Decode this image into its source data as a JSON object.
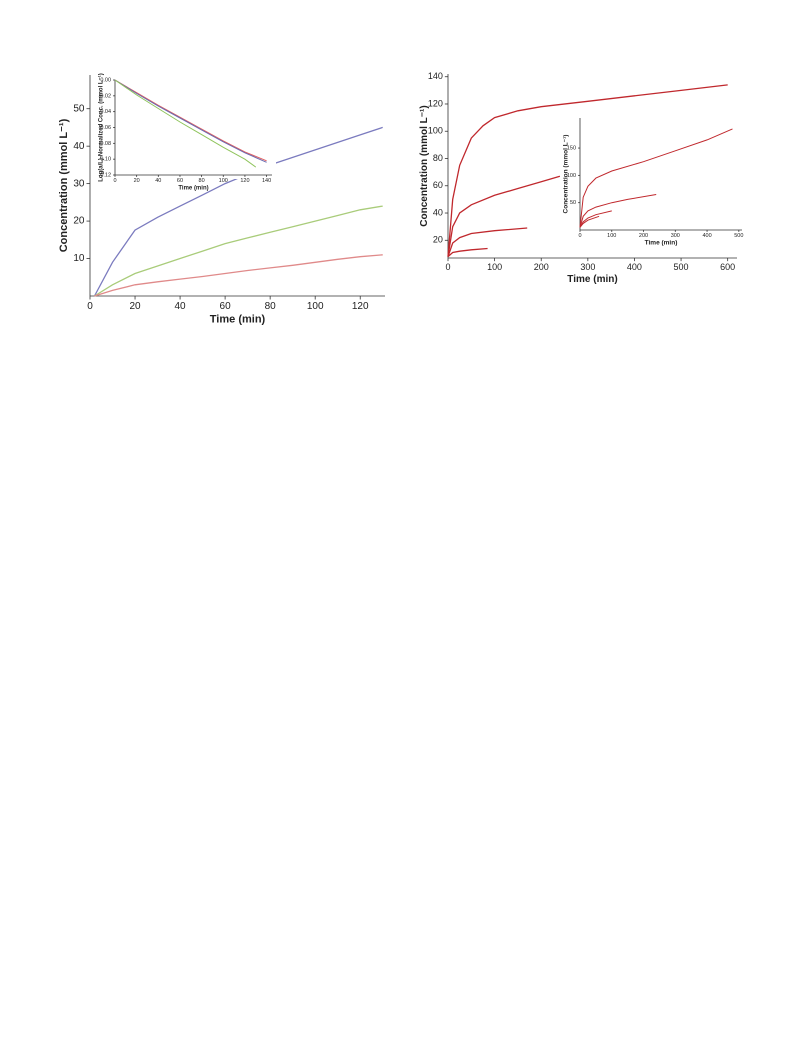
{
  "chart_data": [
    {
      "type": "line",
      "x_label": "Time (min)",
      "y_label": "Concentration (mmol L⁻¹)",
      "xlim": [
        0,
        131
      ],
      "ylim": [
        0,
        59
      ],
      "xticks": [
        0,
        20,
        40,
        60,
        80,
        100,
        120
      ],
      "yticks": [
        10,
        20,
        30,
        40,
        50
      ],
      "series": [
        {
          "color": "#7b7bbf",
          "x": [
            2,
            10,
            20,
            30,
            40,
            50,
            60,
            70,
            80,
            90,
            100,
            110,
            120,
            130
          ],
          "values": [
            0,
            9,
            17.6,
            21,
            24,
            27,
            30,
            32.5,
            35,
            37,
            39,
            41,
            43,
            45
          ]
        },
        {
          "color": "#a9cc7a",
          "x": [
            2,
            10,
            20,
            30,
            40,
            50,
            60,
            70,
            80,
            90,
            100,
            110,
            120,
            130
          ],
          "values": [
            0,
            3,
            6,
            8,
            10,
            12,
            14,
            15.5,
            17,
            18.5,
            20,
            21.5,
            23,
            24
          ]
        },
        {
          "color": "#e08a8a",
          "x": [
            2,
            10,
            20,
            30,
            40,
            50,
            60,
            70,
            80,
            90,
            100,
            110,
            120,
            130
          ],
          "values": [
            0,
            1.5,
            3,
            3.8,
            4.5,
            5.2,
            6,
            6.8,
            7.5,
            8.2,
            9,
            9.8,
            10.5,
            11
          ]
        }
      ]
    },
    {
      "type": "line",
      "x_label": "Time (min)",
      "y_label": "Log(a/L)-Normalized Conc. (mmol L⁻¹)",
      "xlim": [
        0,
        145
      ],
      "ylim": [
        -0.12,
        0
      ],
      "xticks": [
        0,
        20,
        40,
        60,
        80,
        100,
        120,
        140
      ],
      "yticks": [
        {
          "value": 0,
          "label": "0.00"
        },
        {
          "value": -0.02,
          "label": "-0.02"
        },
        {
          "value": -0.04,
          "label": "-0.04"
        },
        {
          "value": -0.06,
          "label": "-0.06"
        },
        {
          "value": -0.08,
          "label": "-0.08"
        },
        {
          "value": -0.1,
          "label": "-0.10"
        },
        {
          "value": -0.12,
          "label": "-0.12"
        }
      ],
      "series": [
        {
          "color": "#e06060",
          "x": [
            0,
            20,
            40,
            60,
            80,
            100,
            120,
            140
          ],
          "values": [
            0,
            -0.016,
            -0.032,
            -0.047,
            -0.062,
            -0.077,
            -0.091,
            -0.102
          ]
        },
        {
          "color": "#6a6ab0",
          "x": [
            0,
            20,
            40,
            60,
            80,
            100,
            120,
            140
          ],
          "values": [
            0,
            -0.017,
            -0.033,
            -0.048,
            -0.063,
            -0.078,
            -0.092,
            -0.104
          ]
        },
        {
          "color": "#8fc45c",
          "x": [
            0,
            20,
            40,
            60,
            80,
            100,
            120,
            130
          ],
          "values": [
            0,
            -0.019,
            -0.036,
            -0.053,
            -0.069,
            -0.085,
            -0.1,
            -0.11
          ]
        }
      ]
    },
    {
      "type": "line",
      "x_label": "Time (min)",
      "y_label": "Concentration (mmol L⁻¹)",
      "xlim": [
        0,
        620
      ],
      "ylim": [
        7,
        142
      ],
      "xticks": [
        0,
        100,
        200,
        300,
        400,
        500,
        600
      ],
      "yticks": [
        20,
        40,
        60,
        80,
        100,
        120,
        140
      ],
      "series": [
        {
          "color": "#c0282d",
          "x": [
            0,
            10,
            25,
            50,
            75,
            100,
            150,
            200,
            300,
            400,
            500,
            600
          ],
          "values": [
            8,
            50,
            75,
            95,
            104,
            110,
            115,
            118,
            122,
            126,
            130,
            134
          ]
        },
        {
          "color": "#c0282d",
          "x": [
            0,
            10,
            25,
            50,
            100,
            150,
            200,
            240
          ],
          "values": [
            8,
            30,
            40,
            46,
            53,
            58,
            63,
            67
          ]
        },
        {
          "color": "#c0282d",
          "x": [
            0,
            10,
            25,
            50,
            100,
            170
          ],
          "values": [
            8,
            18,
            22,
            25,
            27,
            29
          ]
        },
        {
          "color": "#c0282d",
          "x": [
            0,
            10,
            25,
            50,
            85
          ],
          "values": [
            8,
            11,
            12,
            13,
            14
          ]
        }
      ]
    },
    {
      "type": "line",
      "x_label": "Time (min)",
      "y_label": "Concentration (mmol L⁻¹)",
      "xlim": [
        0,
        510
      ],
      "ylim": [
        0,
        205
      ],
      "xticks": [
        0,
        100,
        200,
        300,
        400,
        500
      ],
      "yticks": [
        50,
        100,
        150
      ],
      "series": [
        {
          "color": "#c0282d",
          "x": [
            0,
            10,
            25,
            50,
            100,
            200,
            300,
            400,
            480
          ],
          "values": [
            5,
            60,
            80,
            95,
            108,
            125,
            145,
            165,
            185
          ]
        },
        {
          "color": "#c0282d",
          "x": [
            0,
            10,
            25,
            50,
            100,
            150,
            240
          ],
          "values": [
            5,
            25,
            35,
            42,
            50,
            56,
            65
          ]
        },
        {
          "color": "#c0282d",
          "x": [
            0,
            10,
            25,
            50,
            100
          ],
          "values": [
            5,
            15,
            22,
            28,
            35
          ]
        },
        {
          "color": "#c0282d",
          "x": [
            0,
            10,
            25,
            60
          ],
          "values": [
            5,
            12,
            18,
            25
          ]
        }
      ]
    }
  ]
}
